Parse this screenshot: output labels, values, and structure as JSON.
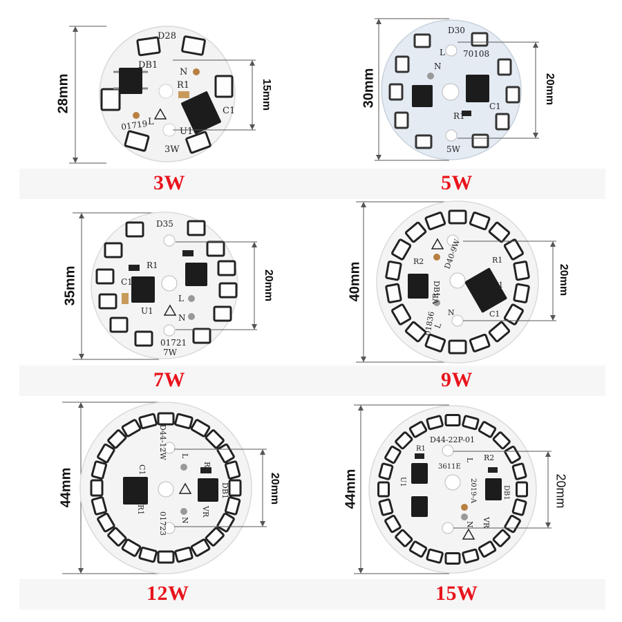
{
  "colors": {
    "caption": "#e8141c",
    "board": "#f4f4f4",
    "led": "#ffffff",
    "chip": "#1c1c1c"
  },
  "boards": [
    {
      "caption": "3W",
      "diameter": "28mm",
      "spacing": "15mm",
      "labels": [
        "D28",
        "DB1",
        "N",
        "R1",
        "C1",
        "L",
        "01719",
        "U1",
        "3W"
      ]
    },
    {
      "caption": "5W",
      "diameter": "30mm",
      "spacing": "20mm",
      "labels": [
        "D30",
        "L",
        "70108",
        "N",
        "C1",
        "R1",
        "5W"
      ]
    },
    {
      "caption": "7W",
      "diameter": "35mm",
      "spacing": "20mm",
      "labels": [
        "D35",
        "R1",
        "C1",
        "U1",
        "L",
        "N",
        "01721",
        "7W"
      ]
    },
    {
      "caption": "9W",
      "diameter": "40mm",
      "spacing": "20mm",
      "labels": [
        "R2",
        "D40-9W",
        "R1",
        "DB1",
        "VR",
        "U1",
        "L",
        "N",
        "01836",
        "C1"
      ]
    },
    {
      "caption": "12W",
      "diameter": "44mm",
      "spacing": "20mm",
      "labels": [
        "D44-12W",
        "L",
        "R2",
        "C1",
        "DB1",
        "R1",
        "01723",
        "N",
        "VR"
      ]
    },
    {
      "caption": "15W",
      "diameter": "44mm",
      "spacing": "20mm",
      "labels": [
        "D44-22P-01",
        "R1",
        "L",
        "R2",
        "3611E",
        "2019-A",
        "DB1",
        "U1",
        "N",
        "VR"
      ]
    }
  ]
}
